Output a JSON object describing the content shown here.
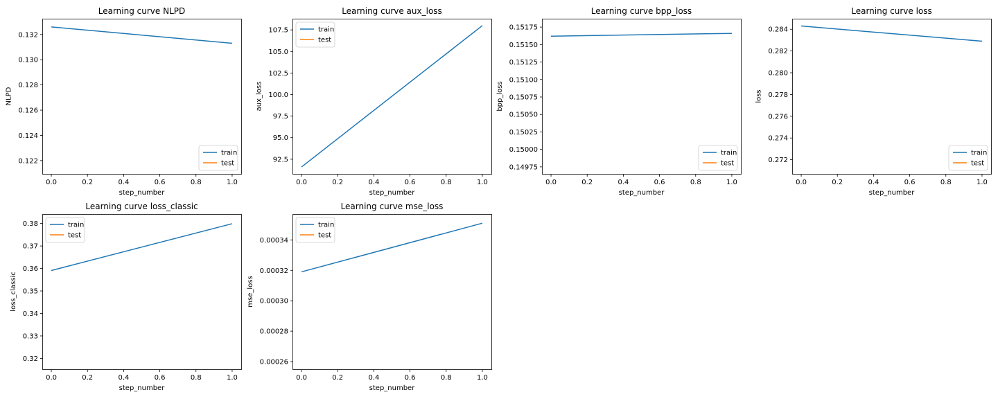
{
  "colors": {
    "train": "#1f77b4",
    "test": "#ff7f0e",
    "axes": "#000000",
    "background": "#ffffff"
  },
  "chart_data": [
    {
      "type": "line",
      "title": "Learning curve NLPD",
      "xlabel": "step_number",
      "ylabel": "NLPD",
      "xlim": [
        -0.05,
        1.05
      ],
      "ylim": [
        0.12095,
        0.13325
      ],
      "xticks": [
        0.0,
        0.2,
        0.4,
        0.6,
        0.8,
        1.0
      ],
      "xtick_labels": [
        "0.0",
        "0.2",
        "0.4",
        "0.6",
        "0.8",
        "1.0"
      ],
      "yticks": [
        0.122,
        0.124,
        0.126,
        0.128,
        0.13,
        0.132
      ],
      "ytick_labels": [
        "0.122",
        "0.124",
        "0.126",
        "0.128",
        "0.130",
        "0.132"
      ],
      "legend": "lower right",
      "grid": false,
      "series": [
        {
          "name": "train",
          "x": [
            0,
            1
          ],
          "y": [
            0.1326,
            0.1313
          ]
        },
        {
          "name": "test",
          "x": [],
          "y": []
        }
      ]
    },
    {
      "type": "line",
      "title": "Learning curve aux_loss",
      "xlabel": "step_number",
      "ylabel": "aux_loss",
      "xlim": [
        -0.05,
        1.05
      ],
      "ylim": [
        90.8,
        108.8
      ],
      "xticks": [
        0.0,
        0.2,
        0.4,
        0.6,
        0.8,
        1.0
      ],
      "xtick_labels": [
        "0.0",
        "0.2",
        "0.4",
        "0.6",
        "0.8",
        "1.0"
      ],
      "yticks": [
        92.5,
        95.0,
        97.5,
        100.0,
        102.5,
        105.0,
        107.5
      ],
      "ytick_labels": [
        "92.5",
        "95.0",
        "97.5",
        "100.0",
        "102.5",
        "105.0",
        "107.5"
      ],
      "legend": "upper left",
      "grid": false,
      "series": [
        {
          "name": "train",
          "x": [
            0,
            1
          ],
          "y": [
            91.6,
            108.0
          ]
        },
        {
          "name": "test",
          "x": [],
          "y": []
        }
      ]
    },
    {
      "type": "line",
      "title": "Learning curve bpp_loss",
      "xlabel": "step_number",
      "ylabel": "bpp_loss",
      "xlim": [
        -0.05,
        1.05
      ],
      "ylim": [
        0.14965,
        0.15187
      ],
      "xticks": [
        0.0,
        0.2,
        0.4,
        0.6,
        0.8,
        1.0
      ],
      "xtick_labels": [
        "0.0",
        "0.2",
        "0.4",
        "0.6",
        "0.8",
        "1.0"
      ],
      "yticks": [
        0.14975,
        0.15,
        0.15025,
        0.1505,
        0.15075,
        0.151,
        0.15125,
        0.1515,
        0.15175
      ],
      "ytick_labels": [
        "0.14975",
        "0.15000",
        "0.15025",
        "0.15050",
        "0.15075",
        "0.15100",
        "0.15125",
        "0.15150",
        "0.15175"
      ],
      "legend": "lower right",
      "grid": false,
      "series": [
        {
          "name": "train",
          "x": [
            0,
            1
          ],
          "y": [
            0.15162,
            0.15166
          ]
        },
        {
          "name": "test",
          "x": [],
          "y": []
        }
      ]
    },
    {
      "type": "line",
      "title": "Learning curve loss",
      "xlabel": "step_number",
      "ylabel": "loss",
      "xlim": [
        -0.05,
        1.05
      ],
      "ylim": [
        0.2707,
        0.28497
      ],
      "xticks": [
        0.0,
        0.2,
        0.4,
        0.6,
        0.8,
        1.0
      ],
      "xtick_labels": [
        "0.0",
        "0.2",
        "0.4",
        "0.6",
        "0.8",
        "1.0"
      ],
      "yticks": [
        0.272,
        0.274,
        0.276,
        0.278,
        0.28,
        0.282,
        0.284
      ],
      "ytick_labels": [
        "0.272",
        "0.274",
        "0.276",
        "0.278",
        "0.280",
        "0.282",
        "0.284"
      ],
      "legend": "lower right",
      "grid": false,
      "series": [
        {
          "name": "train",
          "x": [
            0,
            1
          ],
          "y": [
            0.2843,
            0.2829
          ]
        },
        {
          "name": "test",
          "x": [],
          "y": []
        }
      ]
    },
    {
      "type": "line",
      "title": "Learning curve loss_classic",
      "xlabel": "step_number",
      "ylabel": "loss_classic",
      "xlim": [
        -0.05,
        1.05
      ],
      "ylim": [
        0.3152,
        0.3842
      ],
      "xticks": [
        0.0,
        0.2,
        0.4,
        0.6,
        0.8,
        1.0
      ],
      "xtick_labels": [
        "0.0",
        "0.2",
        "0.4",
        "0.6",
        "0.8",
        "1.0"
      ],
      "yticks": [
        0.32,
        0.33,
        0.34,
        0.35,
        0.36,
        0.37,
        0.38
      ],
      "ytick_labels": [
        "0.32",
        "0.33",
        "0.34",
        "0.35",
        "0.36",
        "0.37",
        "0.38"
      ],
      "legend": "upper left",
      "grid": false,
      "series": [
        {
          "name": "train",
          "x": [
            0,
            1
          ],
          "y": [
            0.3591,
            0.3799
          ]
        },
        {
          "name": "test",
          "x": [],
          "y": []
        }
      ]
    },
    {
      "type": "line",
      "title": "Learning curve mse_loss",
      "xlabel": "step_number",
      "ylabel": "mse_loss",
      "xlim": [
        -0.05,
        1.05
      ],
      "ylim": [
        0.000255,
        0.000357
      ],
      "xticks": [
        0.0,
        0.2,
        0.4,
        0.6,
        0.8,
        1.0
      ],
      "xtick_labels": [
        "0.0",
        "0.2",
        "0.4",
        "0.6",
        "0.8",
        "1.0"
      ],
      "yticks": [
        0.00026,
        0.00028,
        0.0003,
        0.00032,
        0.00034
      ],
      "ytick_labels": [
        "0.00026",
        "0.00028",
        "0.00030",
        "0.00032",
        "0.00034"
      ],
      "legend": "upper left",
      "grid": false,
      "series": [
        {
          "name": "train",
          "x": [
            0,
            1
          ],
          "y": [
            0.000319,
            0.000351
          ]
        },
        {
          "name": "test",
          "x": [],
          "y": []
        }
      ]
    }
  ]
}
